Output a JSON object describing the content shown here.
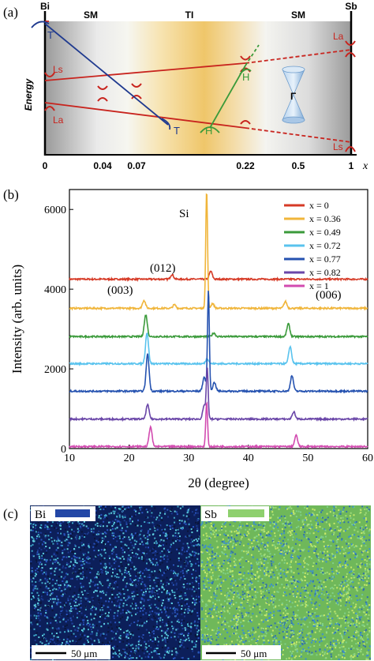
{
  "panel_a": {
    "label": "(a)",
    "top_labels": [
      "Bi",
      "SM",
      "TI",
      "SM",
      "Sb"
    ],
    "energy_label": "Energy",
    "x_ticks": [
      "0",
      "0.04",
      "0.07",
      "0.22",
      "0.5",
      "1"
    ],
    "x_axis_label": "x",
    "bands": {
      "T_left": "T",
      "T_right": "T",
      "Ls_left": "Ls",
      "La_left": "La",
      "La_right": "La",
      "Ls_right": "Ls",
      "H_top": "H",
      "H_bottom": "H",
      "Gamma": "Γ"
    },
    "colors": {
      "red_band": "#c8241e",
      "blue_band": "#1f3a8f",
      "green_band": "#3a9a3a",
      "ti_gold": "#efc870"
    }
  },
  "panel_b": {
    "label": "(b)",
    "annotations": [
      "Si",
      "(012)",
      "(003)",
      "(006)"
    ],
    "colors": {
      "x0": "#d63a26",
      "x036": "#f0b53a",
      "x049": "#3a9a3a",
      "x072": "#59c3ee",
      "x077": "#2552b0",
      "x082": "#6a46a8",
      "x1": "#d24bb0"
    }
  },
  "panel_c": {
    "label": "(c)",
    "left_label": "Bi",
    "right_label": "Sb",
    "left_scale": "50 μm",
    "right_scale": "50 μm",
    "colors": {
      "bi_swatch": "#2347a6",
      "sb_swatch": "#8ed06e"
    }
  },
  "chart_data": {
    "type": "line",
    "title": "",
    "xlabel": "2θ (degree)",
    "ylabel": "Intensity (arb. units)",
    "xlim": [
      10,
      60
    ],
    "ylim": [
      0,
      6500
    ],
    "x_ticks": [
      10,
      20,
      30,
      40,
      50,
      60
    ],
    "y_ticks": [
      0,
      2000,
      4000,
      6000
    ],
    "legend_position": "top-right",
    "series": [
      {
        "name": "x = 0",
        "color": "#d63a26",
        "baseline": 4250,
        "peaks": [
          [
            27.2,
            120
          ],
          [
            33.7,
            200
          ]
        ]
      },
      {
        "name": "x = 0.36",
        "color": "#f0b53a",
        "baseline": 3520,
        "peaks": [
          [
            22.5,
            200
          ],
          [
            27.6,
            90
          ],
          [
            33.0,
            2950
          ],
          [
            34.0,
            120
          ],
          [
            46.2,
            170
          ]
        ]
      },
      {
        "name": "x = 0.49",
        "color": "#3a9a3a",
        "baseline": 2810,
        "peaks": [
          [
            22.8,
            550
          ],
          [
            34.2,
            90
          ],
          [
            46.7,
            320
          ]
        ]
      },
      {
        "name": "x = 0.72",
        "color": "#59c3ee",
        "baseline": 2130,
        "peaks": [
          [
            23.0,
            780
          ],
          [
            33.1,
            130
          ],
          [
            47.0,
            430
          ]
        ]
      },
      {
        "name": "x = 0.77",
        "color": "#2552b0",
        "baseline": 1440,
        "peaks": [
          [
            23.1,
            930
          ],
          [
            32.6,
            350
          ],
          [
            33.3,
            2520
          ],
          [
            34.3,
            220
          ],
          [
            47.3,
            390
          ]
        ]
      },
      {
        "name": "x = 0.82",
        "color": "#6a46a8",
        "baseline": 740,
        "peaks": [
          [
            23.1,
            360
          ],
          [
            32.6,
            330
          ],
          [
            33.1,
            1260
          ],
          [
            47.6,
            180
          ]
        ]
      },
      {
        "name": "x = 1",
        "color": "#d24bb0",
        "baseline": 50,
        "peaks": [
          [
            23.6,
            500
          ],
          [
            33.0,
            1100
          ],
          [
            48.0,
            280
          ]
        ]
      }
    ]
  }
}
